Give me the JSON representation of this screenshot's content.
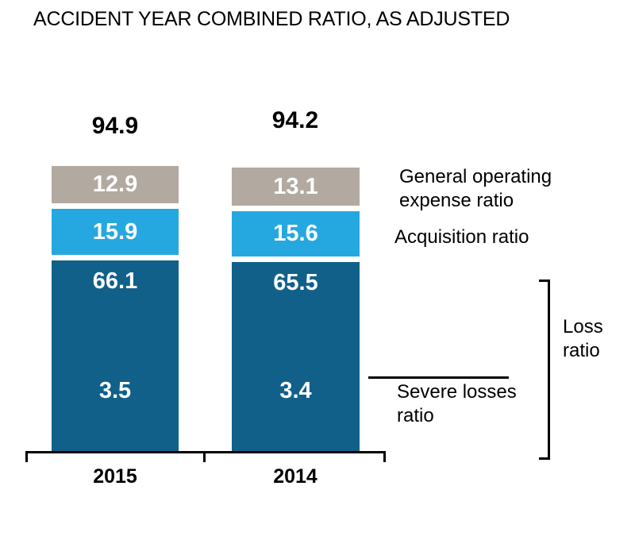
{
  "title": "ACCIDENT YEAR COMBINED RATIO, AS ADJUSTED",
  "bars": [
    {
      "year": "2015",
      "total": "94.9",
      "general": "12.9",
      "acquisition": "15.9",
      "loss": "66.1",
      "severe": "3.5"
    },
    {
      "year": "2014",
      "total": "94.2",
      "general": "13.1",
      "acquisition": "15.6",
      "loss": "65.5",
      "severe": "3.4"
    }
  ],
  "side_labels": {
    "general_operating": "General operating\nexpense ratio",
    "acquisition": "Acquisition ratio",
    "severe_losses": "Severe losses\nratio",
    "loss_ratio": "Loss\nratio"
  },
  "colors": {
    "general_operating_segment": "#b2a9a1",
    "acquisition_segment": "#25a8e0",
    "loss_segment": "#10608a",
    "segment_value_text": "#ffffff",
    "text": "#000000",
    "background": "#ffffff"
  },
  "chart_data": {
    "type": "bar",
    "stacked": true,
    "title": "ACCIDENT YEAR COMBINED RATIO, AS ADJUSTED",
    "categories": [
      "2015",
      "2014"
    ],
    "totals": [
      94.9,
      94.2
    ],
    "series": [
      {
        "name": "General operating expense ratio",
        "values": [
          12.9,
          13.1
        ],
        "color": "#b2a9a1"
      },
      {
        "name": "Acquisition ratio",
        "values": [
          15.9,
          15.6
        ],
        "color": "#25a8e0"
      },
      {
        "name": "Loss ratio",
        "values": [
          66.1,
          65.5
        ],
        "color": "#10608a"
      }
    ],
    "annotations": [
      {
        "name": "Severe losses ratio",
        "values": [
          3.5,
          3.4
        ],
        "placement": "inside Loss ratio segment"
      }
    ],
    "value_labels": "inside segments, white bold",
    "legend_position": "right side text labels with bracket for Loss ratio",
    "grid": false,
    "xlabel": "",
    "ylabel": ""
  }
}
